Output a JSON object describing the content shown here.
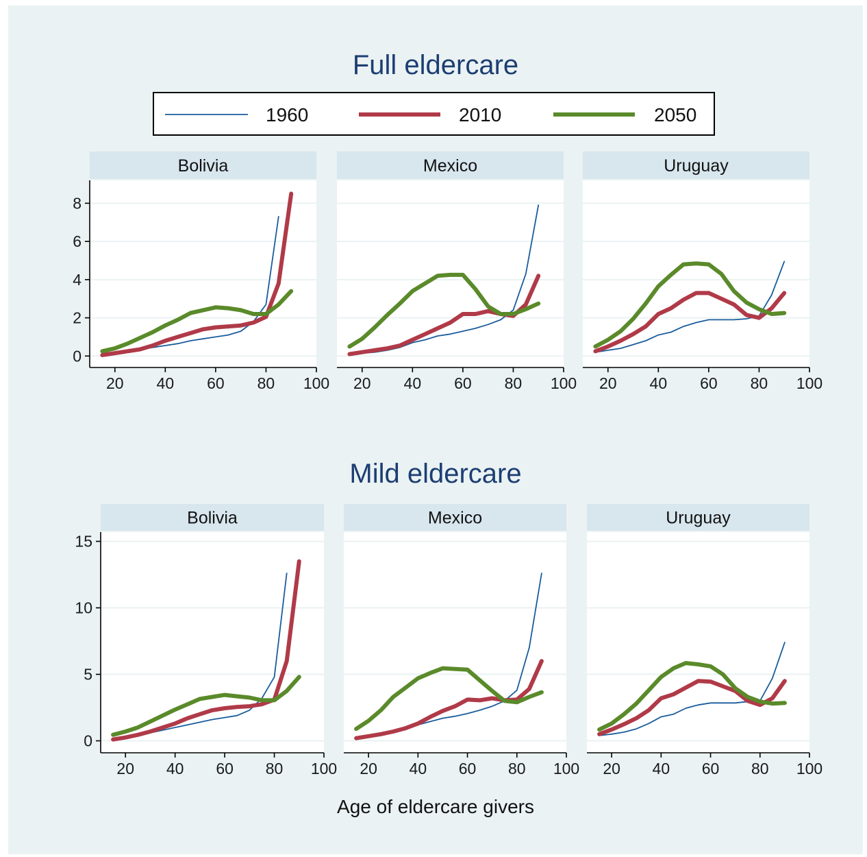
{
  "legend": [
    {
      "name": "1960",
      "color": "#1a5c9c",
      "width": 1.8
    },
    {
      "name": "2010",
      "color": "#b03a48",
      "width": 6
    },
    {
      "name": "2050",
      "color": "#5a8a2a",
      "width": 6
    }
  ],
  "xlabel": "Age of eldercare givers",
  "chart_data": [
    {
      "type": "line",
      "title": "Full eldercare",
      "xlim": [
        10,
        100
      ],
      "xticks": [
        20,
        40,
        60,
        80,
        100
      ],
      "ylim": [
        -0.6,
        9.2
      ],
      "yticks": [
        0,
        2,
        4,
        6,
        8
      ],
      "panels": [
        {
          "name": "Bolivia",
          "series": [
            {
              "name": "1960",
              "x": [
                15,
                20,
                25,
                30,
                35,
                40,
                45,
                50,
                55,
                60,
                65,
                70,
                75,
                80,
                85
              ],
              "y": [
                0.1,
                0.15,
                0.25,
                0.35,
                0.45,
                0.55,
                0.65,
                0.8,
                0.9,
                1.0,
                1.1,
                1.3,
                1.8,
                2.7,
                7.3
              ]
            },
            {
              "name": "2010",
              "x": [
                15,
                20,
                25,
                30,
                35,
                40,
                45,
                50,
                55,
                60,
                65,
                70,
                75,
                80,
                85,
                90
              ],
              "y": [
                0.05,
                0.15,
                0.25,
                0.35,
                0.55,
                0.8,
                1.0,
                1.2,
                1.4,
                1.5,
                1.55,
                1.6,
                1.75,
                2.05,
                3.8,
                8.5
              ]
            },
            {
              "name": "2050",
              "x": [
                15,
                20,
                25,
                30,
                35,
                40,
                45,
                50,
                55,
                60,
                65,
                70,
                75,
                80,
                85,
                90
              ],
              "y": [
                0.25,
                0.4,
                0.65,
                0.95,
                1.25,
                1.6,
                1.9,
                2.25,
                2.4,
                2.55,
                2.5,
                2.4,
                2.2,
                2.2,
                2.7,
                3.4
              ]
            }
          ]
        },
        {
          "name": "Mexico",
          "series": [
            {
              "name": "1960",
              "x": [
                15,
                20,
                25,
                30,
                35,
                40,
                45,
                50,
                55,
                60,
                65,
                70,
                75,
                80,
                85,
                90
              ],
              "y": [
                0.1,
                0.15,
                0.2,
                0.3,
                0.45,
                0.7,
                0.85,
                1.05,
                1.15,
                1.3,
                1.45,
                1.65,
                1.9,
                2.4,
                4.3,
                7.9
              ]
            },
            {
              "name": "2010",
              "x": [
                15,
                20,
                25,
                30,
                35,
                40,
                45,
                50,
                55,
                60,
                65,
                70,
                75,
                80,
                85,
                90
              ],
              "y": [
                0.1,
                0.2,
                0.3,
                0.4,
                0.55,
                0.85,
                1.15,
                1.45,
                1.75,
                2.2,
                2.2,
                2.35,
                2.2,
                2.1,
                2.7,
                4.2
              ]
            },
            {
              "name": "2050",
              "x": [
                15,
                20,
                25,
                30,
                35,
                40,
                45,
                50,
                55,
                60,
                65,
                70,
                75,
                80,
                85,
                90
              ],
              "y": [
                0.5,
                0.9,
                1.5,
                2.15,
                2.75,
                3.4,
                3.8,
                4.2,
                4.25,
                4.25,
                3.5,
                2.6,
                2.2,
                2.2,
                2.45,
                2.75
              ]
            }
          ]
        },
        {
          "name": "Uruguay",
          "series": [
            {
              "name": "1960",
              "x": [
                15,
                20,
                25,
                30,
                35,
                40,
                45,
                50,
                55,
                60,
                65,
                70,
                75,
                80,
                85,
                90
              ],
              "y": [
                0.2,
                0.3,
                0.4,
                0.6,
                0.8,
                1.1,
                1.25,
                1.55,
                1.75,
                1.9,
                1.9,
                1.9,
                1.95,
                2.1,
                3.2,
                4.95
              ]
            },
            {
              "name": "2010",
              "x": [
                15,
                20,
                25,
                30,
                35,
                40,
                45,
                50,
                55,
                60,
                65,
                70,
                75,
                80,
                85,
                90
              ],
              "y": [
                0.25,
                0.5,
                0.8,
                1.15,
                1.55,
                2.2,
                2.5,
                2.95,
                3.3,
                3.3,
                3.0,
                2.7,
                2.15,
                2.0,
                2.5,
                3.3
              ]
            },
            {
              "name": "2050",
              "x": [
                15,
                20,
                25,
                30,
                35,
                40,
                45,
                50,
                55,
                60,
                65,
                70,
                75,
                80,
                85,
                90
              ],
              "y": [
                0.5,
                0.85,
                1.3,
                1.95,
                2.75,
                3.65,
                4.25,
                4.8,
                4.85,
                4.8,
                4.3,
                3.4,
                2.8,
                2.45,
                2.2,
                2.25
              ]
            }
          ]
        }
      ]
    },
    {
      "type": "line",
      "title": "Mild eldercare",
      "xlim": [
        10,
        100
      ],
      "xticks": [
        20,
        40,
        60,
        80,
        100
      ],
      "ylim": [
        -0.9,
        15.7
      ],
      "yticks": [
        0,
        5,
        10,
        15
      ],
      "panels": [
        {
          "name": "Bolivia",
          "series": [
            {
              "name": "1960",
              "x": [
                15,
                20,
                25,
                30,
                35,
                40,
                45,
                50,
                55,
                60,
                65,
                70,
                75,
                80,
                85
              ],
              "y": [
                0.15,
                0.25,
                0.45,
                0.6,
                0.8,
                1.0,
                1.2,
                1.4,
                1.6,
                1.75,
                1.9,
                2.3,
                3.2,
                4.8,
                12.6
              ]
            },
            {
              "name": "2010",
              "x": [
                15,
                20,
                25,
                30,
                35,
                40,
                45,
                50,
                55,
                60,
                65,
                70,
                75,
                80,
                85,
                90
              ],
              "y": [
                0.1,
                0.25,
                0.45,
                0.7,
                1.0,
                1.3,
                1.7,
                2.0,
                2.3,
                2.45,
                2.55,
                2.6,
                2.75,
                3.1,
                6.0,
                13.5
              ]
            },
            {
              "name": "2050",
              "x": [
                15,
                20,
                25,
                30,
                35,
                40,
                45,
                50,
                55,
                60,
                65,
                70,
                75,
                80,
                85,
                90
              ],
              "y": [
                0.45,
                0.7,
                1.0,
                1.45,
                1.9,
                2.35,
                2.75,
                3.15,
                3.3,
                3.45,
                3.35,
                3.25,
                3.05,
                3.05,
                3.75,
                4.8
              ]
            }
          ]
        },
        {
          "name": "Mexico",
          "series": [
            {
              "name": "1960",
              "x": [
                15,
                20,
                25,
                30,
                35,
                40,
                45,
                50,
                55,
                60,
                65,
                70,
                75,
                80,
                85,
                90
              ],
              "y": [
                0.2,
                0.3,
                0.4,
                0.6,
                0.85,
                1.2,
                1.45,
                1.7,
                1.85,
                2.05,
                2.3,
                2.6,
                3.0,
                3.8,
                7.0,
                12.6
              ]
            },
            {
              "name": "2010",
              "x": [
                15,
                20,
                25,
                30,
                35,
                40,
                45,
                50,
                55,
                60,
                65,
                70,
                75,
                80,
                85,
                90
              ],
              "y": [
                0.2,
                0.35,
                0.5,
                0.7,
                0.95,
                1.3,
                1.8,
                2.25,
                2.6,
                3.1,
                3.05,
                3.2,
                3.05,
                3.1,
                3.9,
                6.0
              ]
            },
            {
              "name": "2050",
              "x": [
                15,
                20,
                25,
                30,
                35,
                40,
                45,
                50,
                55,
                60,
                65,
                70,
                75,
                80,
                85,
                90
              ],
              "y": [
                0.9,
                1.5,
                2.3,
                3.3,
                4.0,
                4.7,
                5.1,
                5.45,
                5.4,
                5.35,
                4.55,
                3.75,
                3.0,
                2.9,
                3.3,
                3.65
              ]
            }
          ]
        },
        {
          "name": "Uruguay",
          "series": [
            {
              "name": "1960",
              "x": [
                15,
                20,
                25,
                30,
                35,
                40,
                45,
                50,
                55,
                60,
                65,
                70,
                75,
                80,
                85,
                90
              ],
              "y": [
                0.4,
                0.5,
                0.65,
                0.9,
                1.3,
                1.8,
                2.0,
                2.45,
                2.7,
                2.85,
                2.85,
                2.85,
                2.95,
                3.0,
                4.7,
                7.4
              ]
            },
            {
              "name": "2010",
              "x": [
                15,
                20,
                25,
                30,
                35,
                40,
                45,
                50,
                55,
                60,
                65,
                70,
                75,
                80,
                85,
                90
              ],
              "y": [
                0.5,
                0.85,
                1.25,
                1.7,
                2.3,
                3.2,
                3.5,
                4.0,
                4.5,
                4.45,
                4.1,
                3.75,
                3.0,
                2.7,
                3.2,
                4.5
              ]
            },
            {
              "name": "2050",
              "x": [
                15,
                20,
                25,
                30,
                35,
                40,
                45,
                50,
                55,
                60,
                65,
                70,
                75,
                80,
                85,
                90
              ],
              "y": [
                0.85,
                1.3,
                2.0,
                2.8,
                3.8,
                4.8,
                5.45,
                5.85,
                5.75,
                5.6,
                5.0,
                3.95,
                3.3,
                2.95,
                2.8,
                2.85
              ]
            }
          ]
        }
      ]
    }
  ]
}
